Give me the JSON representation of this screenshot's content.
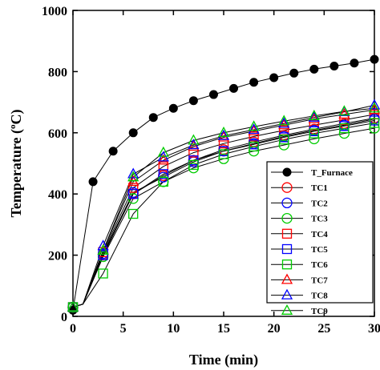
{
  "chart_data": {
    "type": "line",
    "xlabel": "Time (min)",
    "ylabel": "Temperature",
    "ylabel_sup": "o",
    "ylabel_unit": "C)",
    "xlim": [
      0,
      30
    ],
    "ylim": [
      0,
      1000
    ],
    "xticks": [
      0,
      5,
      10,
      15,
      20,
      25,
      30
    ],
    "yticks": [
      0,
      200,
      400,
      600,
      800,
      1000
    ],
    "grid": false,
    "legend_position": "right",
    "series": [
      {
        "name": "T_Furnace",
        "color": "#000000",
        "marker": "filled-circle",
        "x": [
          0,
          2,
          4,
          6,
          8,
          10,
          12,
          14,
          16,
          18,
          20,
          22,
          24,
          26,
          28,
          30
        ],
        "y": [
          20,
          440,
          540,
          600,
          650,
          680,
          705,
          725,
          745,
          765,
          780,
          795,
          808,
          818,
          828,
          840
        ],
        "mx": [
          0,
          1,
          2,
          3,
          4,
          5,
          6,
          7,
          8,
          9,
          10,
          11,
          12,
          13,
          14,
          15
        ]
      },
      {
        "name": "TC1",
        "color": "#ff0000",
        "marker": "circle",
        "x": [
          0,
          1,
          3,
          6,
          9,
          12,
          15,
          18,
          21,
          24,
          27,
          30
        ],
        "y": [
          30,
          40,
          200,
          400,
          460,
          510,
          545,
          570,
          592,
          612,
          630,
          648
        ],
        "mx": [
          0,
          2,
          3,
          4,
          5,
          6,
          7,
          8,
          9,
          10,
          11
        ]
      },
      {
        "name": "TC2",
        "color": "#0000ff",
        "marker": "circle",
        "x": [
          0,
          1,
          3,
          6,
          9,
          12,
          15,
          18,
          21,
          24,
          27,
          30
        ],
        "y": [
          30,
          40,
          205,
          405,
          455,
          505,
          540,
          565,
          588,
          608,
          625,
          645
        ],
        "mx": [
          0,
          2,
          3,
          4,
          5,
          6,
          7,
          8,
          9,
          10,
          11
        ]
      },
      {
        "name": "TC3",
        "color": "#00cc00",
        "marker": "circle",
        "x": [
          0,
          1,
          3,
          6,
          9,
          12,
          15,
          18,
          21,
          24,
          27,
          30
        ],
        "y": [
          30,
          40,
          195,
          385,
          440,
          485,
          515,
          540,
          560,
          580,
          598,
          615
        ],
        "mx": [
          0,
          2,
          3,
          4,
          5,
          6,
          7,
          8,
          9,
          10,
          11
        ]
      },
      {
        "name": "TC4",
        "color": "#ff0000",
        "marker": "square",
        "x": [
          0,
          1,
          3,
          6,
          9,
          12,
          15,
          18,
          21,
          24,
          27,
          30
        ],
        "y": [
          30,
          40,
          210,
          420,
          490,
          535,
          565,
          588,
          608,
          625,
          642,
          660
        ],
        "mx": [
          0,
          2,
          3,
          4,
          5,
          6,
          7,
          8,
          9,
          10,
          11
        ]
      },
      {
        "name": "TC5",
        "color": "#0000ff",
        "marker": "square",
        "x": [
          0,
          1,
          3,
          6,
          9,
          12,
          15,
          18,
          21,
          24,
          27,
          30
        ],
        "y": [
          30,
          40,
          200,
          400,
          465,
          510,
          540,
          562,
          585,
          605,
          622,
          640
        ],
        "mx": [
          0,
          2,
          3,
          4,
          5,
          6,
          7,
          8,
          9,
          10,
          11
        ]
      },
      {
        "name": "TC6",
        "color": "#00cc00",
        "marker": "square",
        "x": [
          0,
          1,
          3,
          6,
          9,
          12,
          15,
          18,
          21,
          24,
          27,
          30
        ],
        "y": [
          30,
          40,
          140,
          335,
          440,
          495,
          530,
          555,
          578,
          598,
          615,
          632
        ],
        "mx": [
          0,
          2,
          3,
          4,
          5,
          6,
          7,
          8,
          9,
          10,
          11
        ]
      },
      {
        "name": "TC7",
        "color": "#ff0000",
        "marker": "triangle",
        "x": [
          0,
          1,
          3,
          6,
          9,
          12,
          15,
          18,
          21,
          24,
          27,
          30
        ],
        "y": [
          30,
          40,
          215,
          440,
          510,
          555,
          585,
          605,
          625,
          645,
          660,
          675
        ],
        "mx": [
          0,
          2,
          3,
          4,
          5,
          6,
          7,
          8,
          9,
          10,
          11
        ]
      },
      {
        "name": "TC8",
        "color": "#0000ff",
        "marker": "triangle",
        "x": [
          0,
          1,
          3,
          6,
          9,
          12,
          15,
          18,
          21,
          24,
          27,
          30
        ],
        "y": [
          30,
          40,
          230,
          465,
          520,
          560,
          590,
          610,
          630,
          650,
          668,
          690
        ],
        "mx": [
          0,
          2,
          3,
          4,
          5,
          6,
          7,
          8,
          9,
          10,
          11
        ]
      },
      {
        "name": "TC9",
        "color": "#00cc00",
        "marker": "triangle",
        "x": [
          0,
          1,
          3,
          6,
          9,
          12,
          15,
          18,
          21,
          24,
          27,
          30
        ],
        "y": [
          30,
          40,
          215,
          455,
          535,
          575,
          600,
          620,
          638,
          655,
          670,
          680
        ],
        "mx": [
          0,
          2,
          3,
          4,
          5,
          6,
          7,
          8,
          9,
          10,
          11
        ]
      }
    ]
  }
}
